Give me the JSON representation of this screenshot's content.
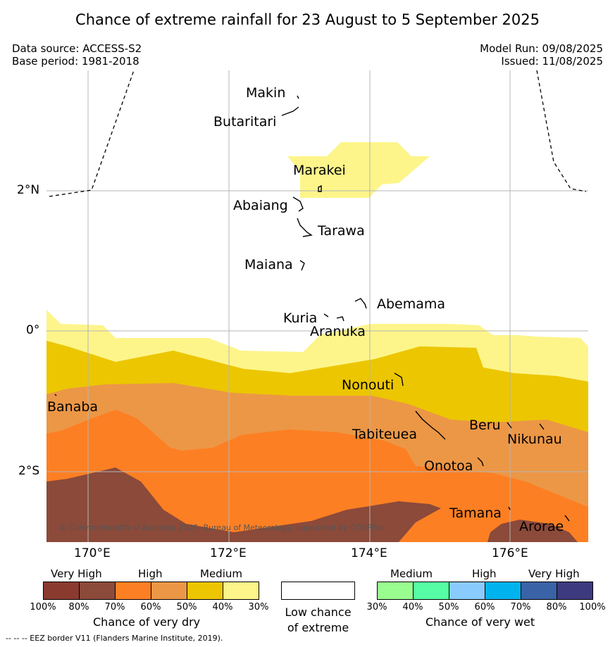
{
  "title": "Chance of extreme rainfall for 23 August to 5 September 2025",
  "meta": {
    "data_source": "Data source: ACCESS-S2",
    "base_period": "Base period: 1981-2018",
    "model_run": "Model Run: 09/08/2025",
    "issued": "Issued: 11/08/2025"
  },
  "credit": "© Commonwealth of Australia 2025, Bureau of Meteorology, supported by COSPPac",
  "footer_note": "--  --  -- EEZ border V11 (Flanders Marine Institute, 2019).",
  "axes": {
    "x_ticks": [
      "170°E",
      "172°E",
      "174°E",
      "176°E"
    ],
    "y_ticks": [
      "2°N",
      "0°",
      "2°S"
    ]
  },
  "islands": [
    {
      "name": "Makin"
    },
    {
      "name": "Butaritari"
    },
    {
      "name": "Marakei"
    },
    {
      "name": "Abaiang"
    },
    {
      "name": "Tarawa"
    },
    {
      "name": "Maiana"
    },
    {
      "name": "Abemama"
    },
    {
      "name": "Kuria"
    },
    {
      "name": "Aranuka"
    },
    {
      "name": "Nonouti"
    },
    {
      "name": "Banaba"
    },
    {
      "name": "Tabiteuea"
    },
    {
      "name": "Beru"
    },
    {
      "name": "Nikunau"
    },
    {
      "name": "Onotoa"
    },
    {
      "name": "Tamana"
    },
    {
      "name": "Arorae"
    }
  ],
  "legend": {
    "dry": {
      "headings": [
        "Very High",
        "High",
        "Medium"
      ],
      "colors": [
        "#8b3a2f",
        "#8b4a3a",
        "#fd7f23",
        "#ec9746",
        "#ecc600",
        "#fdf58a"
      ],
      "ticks": [
        "100%",
        "80%",
        "70%",
        "60%",
        "50%",
        "40%",
        "30%"
      ],
      "title": "Chance of very dry"
    },
    "low": {
      "color": "#ffffff",
      "title_line1": "Low chance",
      "title_line2": "of extreme"
    },
    "wet": {
      "headings": [
        "Medium",
        "High",
        "Very High"
      ],
      "colors": [
        "#99fd8f",
        "#56fda5",
        "#89cbfd",
        "#00b3ee",
        "#3a62a6",
        "#3d3a7f"
      ],
      "ticks": [
        "30%",
        "40%",
        "50%",
        "60%",
        "70%",
        "80%",
        "100%"
      ],
      "title": "Chance of very wet"
    }
  }
}
